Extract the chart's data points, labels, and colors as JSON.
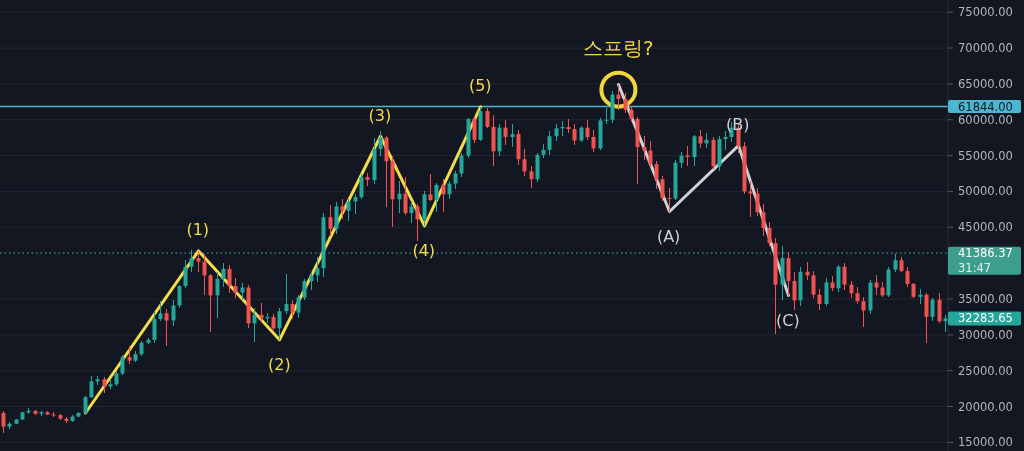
{
  "chart_data": {
    "type": "candlestick",
    "categories": [
      null,
      null,
      null,
      null,
      null,
      null,
      null,
      null,
      null,
      null,
      null,
      null,
      null,
      null,
      null,
      null,
      null,
      null,
      null,
      null,
      null,
      null,
      null,
      null,
      null,
      null,
      null,
      null,
      null,
      null,
      null,
      null,
      null,
      null,
      null,
      null,
      null,
      null,
      null,
      null,
      null,
      null,
      null,
      null,
      null,
      null,
      null,
      null,
      null,
      null,
      null,
      null,
      null,
      null,
      null,
      null,
      null,
      null,
      null,
      null,
      null,
      null,
      null,
      null,
      null,
      null,
      null,
      null,
      null,
      null,
      null,
      null,
      null,
      null,
      null,
      null,
      null,
      null,
      null,
      null,
      null,
      null,
      null,
      null,
      null,
      null,
      null,
      null,
      null,
      null,
      null,
      null,
      null,
      null,
      null,
      null,
      null,
      null,
      null,
      null,
      null,
      null,
      null,
      null,
      null,
      null,
      null,
      null,
      null,
      null,
      null,
      null,
      null,
      null,
      null,
      null,
      null,
      null,
      null,
      null,
      null,
      null,
      null,
      null,
      null,
      null,
      null,
      null,
      null,
      null,
      null,
      null,
      null,
      null,
      null,
      null,
      null,
      null,
      null,
      null,
      null,
      null,
      null,
      null,
      null,
      null,
      null,
      null,
      null,
      null,
      null
    ],
    "ohlc": [
      [
        19100,
        19400,
        16300,
        17200
      ],
      [
        17200,
        17900,
        16800,
        17600
      ],
      [
        17600,
        18300,
        17500,
        18200
      ],
      [
        18200,
        19300,
        18100,
        19200
      ],
      [
        19200,
        19800,
        18900,
        19400
      ],
      [
        19400,
        19500,
        18800,
        19000
      ],
      [
        19000,
        19400,
        18700,
        19200
      ],
      [
        19200,
        19400,
        18800,
        18900
      ],
      [
        18900,
        19200,
        18500,
        18800
      ],
      [
        18800,
        19000,
        18100,
        18300
      ],
      [
        18300,
        18500,
        17700,
        18000
      ],
      [
        18000,
        18800,
        17900,
        18600
      ],
      [
        18600,
        19300,
        18500,
        19100
      ],
      [
        19100,
        21500,
        19000,
        21300
      ],
      [
        21300,
        24300,
        21200,
        23500
      ],
      [
        23500,
        24200,
        23000,
        23800
      ],
      [
        23800,
        24100,
        21900,
        22800
      ],
      [
        22800,
        23800,
        22500,
        23100
      ],
      [
        23100,
        25000,
        22900,
        24600
      ],
      [
        24600,
        27200,
        24400,
        26900
      ],
      [
        26900,
        28500,
        26000,
        26400
      ],
      [
        26400,
        27700,
        26200,
        27300
      ],
      [
        27300,
        29100,
        27100,
        28900
      ],
      [
        28900,
        29600,
        28700,
        29300
      ],
      [
        29300,
        33200,
        28800,
        32200
      ],
      [
        32200,
        34700,
        32000,
        33000
      ],
      [
        33000,
        33600,
        28400,
        32000
      ],
      [
        32000,
        34800,
        31200,
        34100
      ],
      [
        34100,
        37000,
        33800,
        36800
      ],
      [
        36800,
        40500,
        36500,
        39500
      ],
      [
        39500,
        41900,
        38800,
        40700
      ],
      [
        40700,
        41700,
        38700,
        40200
      ],
      [
        40200,
        41300,
        35600,
        38300
      ],
      [
        38300,
        38500,
        30400,
        35500
      ],
      [
        35500,
        38800,
        32300,
        37800
      ],
      [
        37800,
        40000,
        36700,
        39200
      ],
      [
        39200,
        39800,
        35900,
        36800
      ],
      [
        36800,
        37900,
        35100,
        35900
      ],
      [
        35900,
        37300,
        34800,
        36600
      ],
      [
        36600,
        37000,
        30900,
        31600
      ],
      [
        31600,
        33800,
        29000,
        32800
      ],
      [
        32800,
        34500,
        31900,
        32300
      ],
      [
        32300,
        33000,
        31600,
        32500
      ],
      [
        32500,
        32900,
        30700,
        30900
      ],
      [
        30900,
        33800,
        29300,
        33300
      ],
      [
        33300,
        38500,
        32900,
        34300
      ],
      [
        34300,
        34800,
        32200,
        33100
      ],
      [
        33100,
        35600,
        32300,
        35200
      ],
      [
        35200,
        37800,
        34800,
        37500
      ],
      [
        37500,
        38700,
        36200,
        38300
      ],
      [
        38300,
        40900,
        37400,
        39300
      ],
      [
        39300,
        47000,
        38000,
        46400
      ],
      [
        46400,
        48100,
        43800,
        44800
      ],
      [
        44800,
        48500,
        44100,
        47900
      ],
      [
        47900,
        48900,
        46200,
        47300
      ],
      [
        47300,
        49000,
        45900,
        48600
      ],
      [
        48600,
        49700,
        46800,
        49200
      ],
      [
        49200,
        52500,
        48900,
        52000
      ],
      [
        52000,
        52600,
        50800,
        51600
      ],
      [
        51600,
        57500,
        51000,
        55900
      ],
      [
        55900,
        58400,
        55000,
        57500
      ],
      [
        57500,
        57700,
        47800,
        54200
      ],
      [
        54200,
        54900,
        45000,
        48900
      ],
      [
        48900,
        51400,
        47000,
        49700
      ],
      [
        49700,
        52000,
        46700,
        47000
      ],
      [
        47000,
        48600,
        45600,
        47900
      ],
      [
        47900,
        48300,
        43100,
        46100
      ],
      [
        46100,
        50000,
        45200,
        49600
      ],
      [
        49600,
        52400,
        48600,
        48800
      ],
      [
        48800,
        51200,
        47100,
        50900
      ],
      [
        50900,
        51700,
        47200,
        49600
      ],
      [
        49600,
        51500,
        49000,
        51100
      ],
      [
        51100,
        52800,
        50400,
        52500
      ],
      [
        52500,
        55300,
        52000,
        55000
      ],
      [
        55000,
        60300,
        54600,
        60100
      ],
      [
        60100,
        60500,
        56800,
        57200
      ],
      [
        57200,
        61844,
        57000,
        61200
      ],
      [
        61200,
        61700,
        58800,
        59000
      ],
      [
        59000,
        60600,
        53600,
        55600
      ],
      [
        55600,
        59400,
        54900,
        58900
      ],
      [
        58900,
        60000,
        56500,
        57600
      ],
      [
        57600,
        59400,
        56200,
        58000
      ],
      [
        58000,
        58500,
        53700,
        54500
      ],
      [
        54500,
        55900,
        52200,
        52800
      ],
      [
        52800,
        53500,
        50500,
        51700
      ],
      [
        51700,
        55300,
        51300,
        55100
      ],
      [
        55100,
        56600,
        54700,
        55800
      ],
      [
        55800,
        58400,
        55100,
        57700
      ],
      [
        57700,
        59400,
        57000,
        58800
      ],
      [
        58800,
        59800,
        57800,
        59000
      ],
      [
        59000,
        60100,
        58200,
        58700
      ],
      [
        58700,
        59400,
        56500,
        57100
      ],
      [
        57100,
        59100,
        56900,
        58900
      ],
      [
        58900,
        60000,
        57200,
        57600
      ],
      [
        57600,
        58500,
        55500,
        56000
      ],
      [
        56000,
        60300,
        55800,
        59900
      ],
      [
        59900,
        61700,
        59400,
        60000
      ],
      [
        60000,
        64000,
        59600,
        63500
      ],
      [
        63500,
        64900,
        61300,
        62900
      ],
      [
        62900,
        63700,
        60900,
        61400
      ],
      [
        61400,
        61900,
        59700,
        60100
      ],
      [
        60100,
        60400,
        51100,
        56200
      ],
      [
        56200,
        57800,
        54400,
        55700
      ],
      [
        55700,
        57100,
        53300,
        53800
      ],
      [
        53800,
        54300,
        50300,
        51700
      ],
      [
        51700,
        52100,
        48700,
        49100
      ],
      [
        49100,
        50500,
        47200,
        49000
      ],
      [
        49000,
        54400,
        48800,
        54000
      ],
      [
        54000,
        55500,
        53200,
        55000
      ],
      [
        55000,
        56400,
        53600,
        54800
      ],
      [
        54800,
        57900,
        53600,
        57700
      ],
      [
        57700,
        58500,
        56000,
        56700
      ],
      [
        56700,
        58200,
        56000,
        57200
      ],
      [
        57200,
        57600,
        53100,
        53500
      ],
      [
        53500,
        57700,
        52800,
        57300
      ],
      [
        57300,
        58400,
        55800,
        57600
      ],
      [
        57600,
        59700,
        56900,
        58900
      ],
      [
        58900,
        59500,
        55300,
        56300
      ],
      [
        56300,
        56900,
        49700,
        50000
      ],
      [
        50000,
        51500,
        46500,
        49700
      ],
      [
        49700,
        50500,
        46600,
        47100
      ],
      [
        47100,
        48200,
        43800,
        44900
      ],
      [
        44900,
        45800,
        42400,
        42800
      ],
      [
        42800,
        43500,
        30100,
        37000
      ],
      [
        37000,
        42400,
        34800,
        40700
      ],
      [
        40700,
        41500,
        35400,
        37500
      ],
      [
        37500,
        38800,
        33500,
        34800
      ],
      [
        34800,
        39400,
        34000,
        38800
      ],
      [
        38800,
        40100,
        37700,
        38300
      ],
      [
        38300,
        38900,
        35200,
        35600
      ],
      [
        35600,
        36400,
        33500,
        34300
      ],
      [
        34300,
        37900,
        34000,
        37300
      ],
      [
        37300,
        38200,
        36100,
        36500
      ],
      [
        36500,
        39800,
        36000,
        39500
      ],
      [
        39500,
        40000,
        36300,
        37000
      ],
      [
        37000,
        37500,
        35100,
        35800
      ],
      [
        35800,
        36700,
        34300,
        34700
      ],
      [
        34700,
        35300,
        31100,
        33400
      ],
      [
        33400,
        37600,
        32900,
        37300
      ],
      [
        37300,
        38300,
        35600,
        36600
      ],
      [
        36600,
        37400,
        35300,
        35500
      ],
      [
        35500,
        39500,
        35300,
        39100
      ],
      [
        39100,
        41300,
        38800,
        40400
      ],
      [
        40400,
        40900,
        38700,
        38900
      ],
      [
        38900,
        39400,
        36700,
        37100
      ],
      [
        37100,
        37300,
        35100,
        35300
      ],
      [
        35300,
        36400,
        34300,
        35600
      ],
      [
        35600,
        35900,
        28800,
        32500
      ],
      [
        32500,
        35200,
        31900,
        34900
      ],
      [
        34900,
        35900,
        31700,
        31900
      ],
      [
        31900,
        32700,
        30400,
        32283.65
      ]
    ],
    "value_labels": [
      null,
      null,
      null,
      null,
      null,
      null,
      null,
      null,
      null,
      null,
      null,
      null,
      null,
      null,
      null,
      null,
      null,
      null,
      null,
      null,
      null,
      null,
      null,
      null,
      null,
      null,
      null,
      null,
      null,
      null,
      null,
      null,
      null,
      null,
      null,
      null,
      null,
      null,
      null,
      null,
      null,
      null,
      null,
      null,
      null,
      null,
      null,
      null,
      null,
      null,
      null,
      null,
      null,
      null,
      null,
      null,
      null,
      null,
      null,
      null,
      null,
      null,
      null,
      null,
      null,
      null,
      null,
      null,
      null,
      null,
      null,
      null,
      null,
      null,
      null,
      null,
      null,
      null,
      null,
      null,
      null,
      null,
      null,
      null,
      null,
      null,
      null,
      null,
      null,
      null,
      null,
      null,
      null,
      null,
      null,
      null,
      null,
      null,
      null,
      null,
      null,
      null,
      null,
      null,
      null,
      null,
      null,
      null,
      null,
      null,
      null,
      null,
      null,
      null,
      null,
      null,
      null,
      null,
      null,
      null,
      null,
      null,
      null,
      null,
      null,
      null,
      null,
      null,
      null,
      null,
      null,
      null,
      null,
      null,
      null,
      null,
      null,
      null,
      null,
      null,
      null,
      null,
      null,
      null,
      null,
      null,
      null,
      null,
      null,
      null,
      "32283.65"
    ],
    "series": [
      {
        "type": "line",
        "color": "#f5dc4a",
        "values": [
          null,
          null,
          null,
          null,
          null,
          null,
          null,
          null,
          null,
          null,
          null,
          null,
          null,
          19100,
          null,
          null,
          null,
          null,
          null,
          null,
          null,
          null,
          null,
          null,
          null,
          null,
          null,
          null,
          null,
          null,
          null,
          41700,
          null,
          null,
          null,
          null,
          null,
          null,
          null,
          null,
          null,
          null,
          null,
          null,
          29300,
          null,
          null,
          null,
          null,
          null,
          null,
          null,
          null,
          null,
          null,
          null,
          null,
          null,
          null,
          null,
          57700,
          null,
          null,
          null,
          null,
          null,
          null,
          45200,
          null,
          null,
          null,
          null,
          null,
          null,
          null,
          null,
          61800,
          null,
          null,
          null,
          null,
          null,
          null,
          null,
          null,
          null,
          null,
          null,
          null,
          null,
          null,
          null,
          null,
          null,
          null,
          null,
          null,
          null,
          null,
          null,
          null,
          null,
          null,
          null,
          null,
          null,
          null,
          null,
          null,
          null,
          null,
          null,
          null,
          null,
          null,
          null,
          null,
          null,
          null,
          null,
          null,
          null,
          null,
          null,
          null,
          null,
          null,
          null,
          null,
          null,
          null,
          null,
          null,
          null,
          null,
          null,
          null,
          null,
          null,
          null,
          null,
          null,
          null,
          null,
          null,
          null,
          null,
          null,
          null,
          null,
          null
        ]
      },
      {
        "type": "line",
        "color": "#cfd1d6",
        "values": [
          null,
          null,
          null,
          null,
          null,
          null,
          null,
          null,
          null,
          null,
          null,
          null,
          null,
          null,
          null,
          null,
          null,
          null,
          null,
          null,
          null,
          null,
          null,
          null,
          null,
          null,
          null,
          null,
          null,
          null,
          null,
          null,
          null,
          null,
          null,
          null,
          null,
          null,
          null,
          null,
          null,
          null,
          null,
          null,
          null,
          null,
          null,
          null,
          null,
          null,
          null,
          null,
          null,
          null,
          null,
          null,
          null,
          null,
          null,
          null,
          null,
          null,
          null,
          null,
          null,
          null,
          null,
          null,
          null,
          null,
          null,
          null,
          null,
          null,
          null,
          null,
          null,
          null,
          null,
          null,
          null,
          null,
          null,
          null,
          null,
          null,
          null,
          null,
          null,
          null,
          null,
          null,
          null,
          null,
          null,
          null,
          null,
          null,
          64900,
          null,
          null,
          null,
          null,
          null,
          null,
          null,
          47200,
          null,
          null,
          null,
          null,
          null,
          null,
          null,
          null,
          null,
          null,
          56400,
          null,
          null,
          null,
          null,
          null,
          null,
          null,
          35500,
          null,
          null,
          null,
          null,
          null,
          null,
          null,
          null,
          null,
          null,
          null,
          null,
          null,
          null,
          null,
          null,
          null,
          null,
          null,
          null,
          null,
          null,
          null,
          null,
          null
        ]
      },
      {
        "type": "scatter",
        "color": "#f2d640",
        "marker": "circle",
        "values": [
          null,
          null,
          null,
          null,
          null,
          null,
          null,
          null,
          null,
          null,
          null,
          null,
          null,
          null,
          null,
          null,
          null,
          null,
          null,
          null,
          null,
          null,
          null,
          null,
          null,
          null,
          null,
          null,
          null,
          null,
          null,
          null,
          null,
          null,
          null,
          null,
          null,
          null,
          null,
          null,
          null,
          null,
          null,
          null,
          null,
          null,
          null,
          null,
          null,
          null,
          null,
          null,
          null,
          null,
          null,
          null,
          null,
          null,
          null,
          null,
          null,
          null,
          null,
          null,
          null,
          null,
          null,
          null,
          null,
          null,
          null,
          null,
          null,
          null,
          null,
          null,
          null,
          null,
          null,
          null,
          null,
          null,
          null,
          null,
          null,
          null,
          null,
          null,
          null,
          null,
          null,
          null,
          null,
          null,
          null,
          null,
          null,
          null,
          64200,
          null,
          null,
          null,
          null,
          null,
          null,
          null,
          null,
          null,
          null,
          null,
          null,
          null,
          null,
          null,
          null,
          null,
          null,
          null,
          null,
          null,
          null,
          null,
          null,
          null,
          null,
          null,
          null,
          null,
          null,
          null,
          null,
          null,
          null,
          null,
          null,
          null,
          null,
          null,
          null,
          null,
          null,
          null,
          null,
          null,
          null,
          null,
          null,
          null,
          null,
          null,
          null
        ]
      }
    ],
    "ylim": [
      13800,
      76700
    ],
    "yticks": [
      {
        "value": 15000,
        "label": "15000.00"
      },
      {
        "value": 20000,
        "label": "20000.00"
      },
      {
        "value": 25000,
        "label": "25000.00"
      },
      {
        "value": 30000,
        "label": "30000.00"
      },
      {
        "value": 35000,
        "label": "35000.00"
      },
      {
        "value": 45000,
        "label": "45000.00"
      },
      {
        "value": 50000,
        "label": "50000.00"
      },
      {
        "value": 55000,
        "label": "55000.00"
      },
      {
        "value": 60000,
        "label": "60000.00"
      },
      {
        "value": 65000,
        "label": "65000.00"
      },
      {
        "value": 70000,
        "label": "70000.00"
      },
      {
        "value": 75000,
        "label": "75000.00"
      }
    ],
    "tick_labels": "y",
    "grid": "y",
    "ref_lines": [
      {
        "axis": "y",
        "value": 61844,
        "label": "61844.00",
        "color": "#4db6cf",
        "line_style": "solid"
      },
      {
        "axis": "y",
        "value": 41386.37,
        "label": "41386.37",
        "color": "#3e9e8d",
        "line_style": "dotted"
      }
    ],
    "annotations": [
      {
        "text": "(1)",
        "y": 41700
      },
      {
        "text": "(2)",
        "y": 29300
      },
      {
        "text": "(3)",
        "y": 57700
      },
      {
        "text": "(4)",
        "y": 45200
      },
      {
        "text": "(5)",
        "y": 61800
      },
      {
        "text": "스프링?",
        "y": 64200
      },
      {
        "text": "(A)",
        "y": 47200
      },
      {
        "text": "(B)",
        "y": 56400
      },
      {
        "text": "(C)",
        "y": 35500
      },
      "31:47"
    ]
  }
}
